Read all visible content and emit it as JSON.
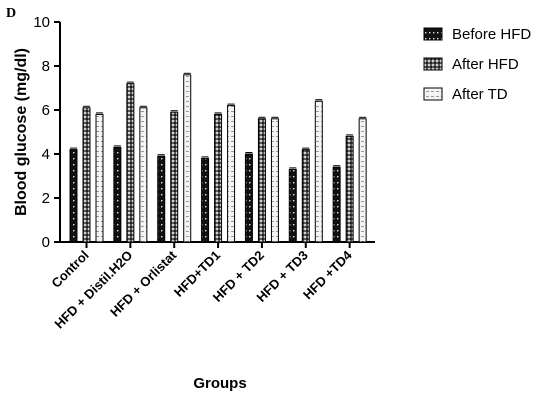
{
  "chart_data": {
    "type": "bar",
    "panel_label": "D",
    "xlabel": "Groups",
    "ylabel": "Blood glucose (mg/dl)",
    "ylim": [
      0,
      10
    ],
    "yticks": [
      0,
      2,
      4,
      6,
      8,
      10
    ],
    "grid": false,
    "legend_position": "top-right",
    "categories": [
      "Control",
      "HFD + Distil.H2O",
      "HFD + Orlistat",
      "HFD+TD1",
      "HFD + TD2",
      "HFD + TD3",
      "HFD +TD4"
    ],
    "series": [
      {
        "name": "Before HFD",
        "values": [
          4.2,
          4.3,
          3.9,
          3.8,
          4.0,
          3.3,
          3.4
        ],
        "pattern": "dots-on-black"
      },
      {
        "name": "After HFD",
        "values": [
          6.1,
          7.2,
          5.9,
          5.8,
          5.6,
          4.2,
          4.8
        ],
        "pattern": "grey-check"
      },
      {
        "name": "After TD",
        "values": [
          5.8,
          6.1,
          7.6,
          6.2,
          5.6,
          6.4,
          5.6
        ],
        "pattern": "light-dash"
      }
    ]
  }
}
